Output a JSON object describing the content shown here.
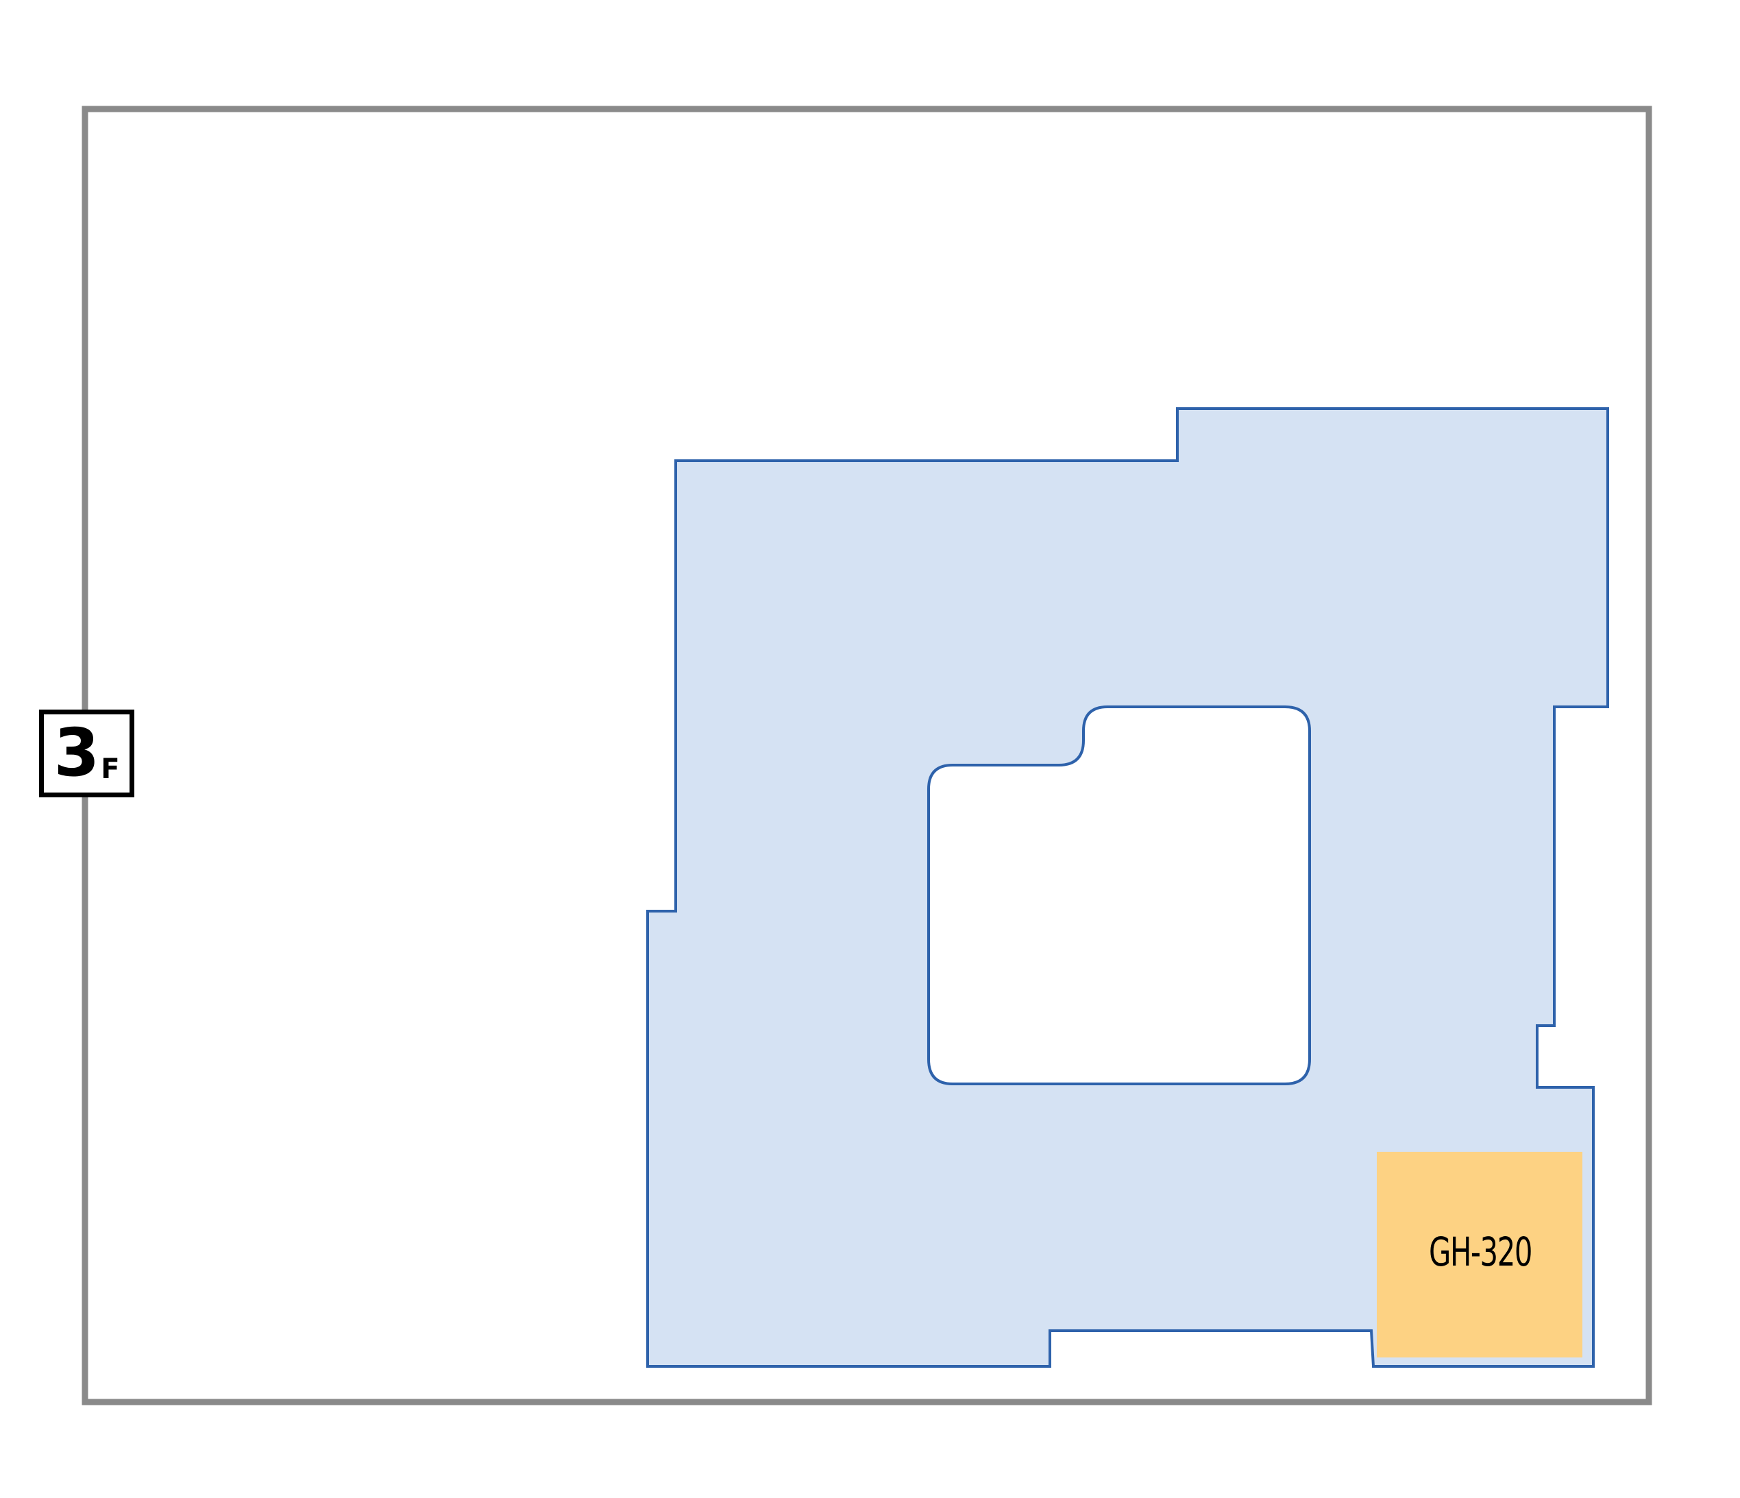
{
  "floor": {
    "number": "3",
    "suffix": "F"
  },
  "colors": {
    "building_outline": "#8a8a8a",
    "zone_fill": "#d5e2f3",
    "zone_stroke": "#2e62ab",
    "room_fill": "#fdd283",
    "text": "#000000"
  },
  "rooms": [
    {
      "id": "GH-320",
      "label": "GH-320",
      "highlighted": true
    }
  ]
}
